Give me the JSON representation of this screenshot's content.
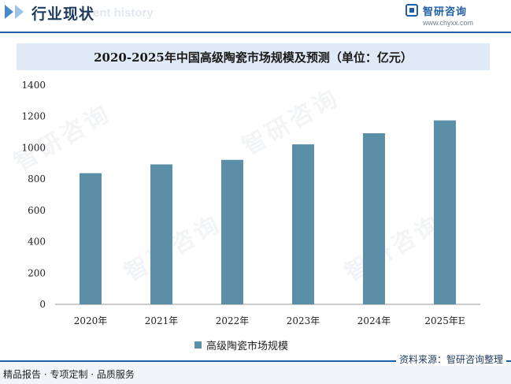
{
  "header": {
    "section_title": "行业现状",
    "ghost_text": "ent history",
    "brand_name": "智研咨询",
    "brand_url": "www.chyxx.com"
  },
  "chart_data": {
    "type": "bar",
    "title": "2020-2025年中国高级陶瓷市场规模及预测（单位：亿元）",
    "categories": [
      "2020年",
      "2021年",
      "2022年",
      "2023年",
      "2024年",
      "2025年E"
    ],
    "series": [
      {
        "name": "高级陶瓷市场规模",
        "values": [
          838,
          894,
          923,
          1022,
          1093,
          1175
        ]
      }
    ],
    "ylim": [
      0,
      1400
    ],
    "yticks": [
      0,
      200,
      400,
      600,
      800,
      1000,
      1200,
      1400
    ],
    "ytick_labels": [
      "0",
      "200",
      "400",
      "600",
      "800",
      "1000",
      "1200",
      "1400"
    ],
    "bar_color": "#5b8fa8",
    "grid": false,
    "legend_position": "bottom"
  },
  "footer": {
    "left_text": "精品报告 · 专项定制 · 品质服务",
    "source": "资料来源：智研咨询整理"
  },
  "watermark": {
    "text": "智研咨询"
  }
}
